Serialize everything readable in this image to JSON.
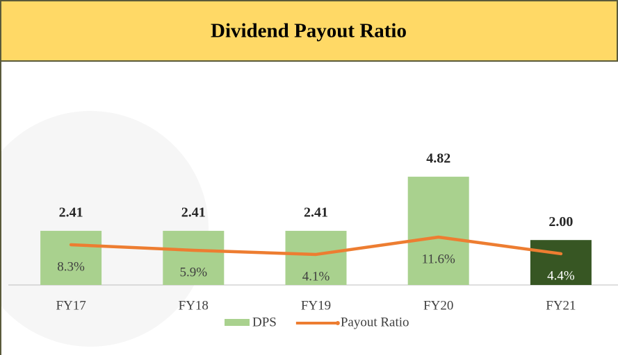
{
  "chart_data": {
    "type": "bar",
    "title": "Dividend Payout Ratio",
    "categories": [
      "FY17",
      "FY18",
      "FY19",
      "FY20",
      "FY21"
    ],
    "series": [
      {
        "name": "DPS",
        "type": "bar",
        "color": "#a9d18e",
        "colors": [
          "#a9d18e",
          "#a9d18e",
          "#a9d18e",
          "#a9d18e",
          "#375623"
        ],
        "values": [
          2.41,
          2.41,
          2.41,
          4.82,
          2
        ],
        "value_labels": [
          "2.41",
          "2.41",
          "2.41",
          "4.82",
          "2.00"
        ]
      },
      {
        "name": "Payout Ratio",
        "type": "line",
        "color": "#ed7d31",
        "values": [
          8.3,
          5.9,
          4.1,
          11.6,
          4.4
        ],
        "value_labels": [
          "8.3%",
          "5.9%",
          "4.1%",
          "11.6%",
          "4.4%"
        ]
      }
    ],
    "legend": "bottom"
  }
}
